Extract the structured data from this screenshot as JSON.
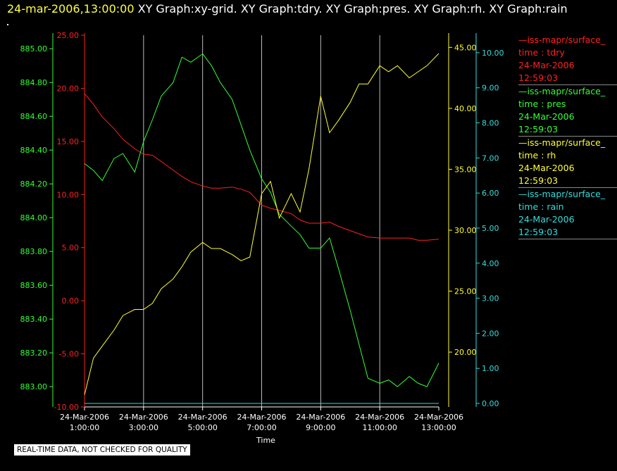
{
  "header": {
    "timestamp": "24-mar-2006,13:00:00",
    "graphs": "XY Graph:xy-grid.  XY Graph:tdry.  XY Graph:pres.  XY Graph:rh.  XY Graph:rain"
  },
  "legend": [
    {
      "name": "—iss-mapr/surface_",
      "field": "time : tdry",
      "date": "24-Mar-2006",
      "time": "12:59:03",
      "color": "#ff2020"
    },
    {
      "name": "—iss-mapr/surface_",
      "field": "time : pres",
      "date": "24-Mar-2006",
      "time": "12:59:03",
      "color": "#33ff33"
    },
    {
      "name": "—iss-mapr/surface_",
      "field": "time : rh",
      "date": "24-Mar-2006",
      "time": "12:59:03",
      "color": "#ffff33"
    },
    {
      "name": "—iss-mapr/surface_",
      "field": "time : rain",
      "date": "24-Mar-2006",
      "time": "12:59:03",
      "color": "#33dddd"
    }
  ],
  "disclaimer": "REAL-TIME DATA, NOT CHECKED FOR QUALITY",
  "chart_data": {
    "type": "line",
    "xlabel": "Time",
    "x_ticks": [
      [
        "24-Mar-2006",
        "1:00:00"
      ],
      [
        "24-Mar-2006",
        "3:00:00"
      ],
      [
        "24-Mar-2006",
        "5:00:00"
      ],
      [
        "24-Mar-2006",
        "7:00:00"
      ],
      [
        "24-Mar-2006",
        "9:00:00"
      ],
      [
        "24-Mar-2006",
        "11:00:00"
      ],
      [
        "24-Mar-2006",
        "13:00:00"
      ]
    ],
    "x_tick_hours": [
      1,
      3,
      5,
      7,
      9,
      11,
      13
    ],
    "xlim_hours": [
      1,
      13
    ],
    "grid": "vertical",
    "axes": [
      {
        "id": "tdry",
        "color": "#ff2020",
        "ylim": [
          -10,
          25
        ],
        "ticks": [
          "-10.00",
          "-5.00",
          "0.00",
          "5.00",
          "10.00",
          "15.00",
          "20.00",
          "25.00"
        ],
        "tick_values": [
          -10,
          -5,
          0,
          5,
          10,
          15,
          20,
          25
        ]
      },
      {
        "id": "pres",
        "color": "#33ff33",
        "ylim": [
          882.88,
          885.08
        ],
        "ticks": [
          "883.00",
          "883.20",
          "883.40",
          "883.60",
          "883.80",
          "884.00",
          "884.20",
          "884.40",
          "884.60",
          "884.80",
          "885.00"
        ],
        "tick_values": [
          883.0,
          883.2,
          883.4,
          883.6,
          883.8,
          884.0,
          884.2,
          884.4,
          884.6,
          884.8,
          885.0
        ]
      },
      {
        "id": "rh",
        "color": "#ffff33",
        "ylim": [
          15.5,
          46.0
        ],
        "ticks": [
          "20.00",
          "25.00",
          "30.00",
          "35.00",
          "40.00",
          "45.00"
        ],
        "tick_values": [
          20,
          25,
          30,
          35,
          40,
          45
        ]
      },
      {
        "id": "rain",
        "color": "#33dddd",
        "ylim": [
          -0.1,
          10.5
        ],
        "ticks": [
          "0.00",
          "1.00",
          "2.00",
          "3.00",
          "4.00",
          "5.00",
          "6.00",
          "7.00",
          "8.00",
          "9.00",
          "10.00"
        ],
        "tick_values": [
          0,
          1,
          2,
          3,
          4,
          5,
          6,
          7,
          8,
          9,
          10
        ]
      }
    ],
    "series": [
      {
        "axis": "tdry",
        "color": "#ff2020",
        "x": [
          1.0,
          1.3,
          1.6,
          2.0,
          2.3,
          2.7,
          3.0,
          3.3,
          3.6,
          4.0,
          4.3,
          4.6,
          5.0,
          5.3,
          5.6,
          6.0,
          6.3,
          6.6,
          7.0,
          7.3,
          7.6,
          8.0,
          8.3,
          8.6,
          9.0,
          9.3,
          9.6,
          10.0,
          10.3,
          10.6,
          11.0,
          11.3,
          11.6,
          12.0,
          12.3,
          12.6,
          13.0
        ],
        "y": [
          19.5,
          18.5,
          17.3,
          16.2,
          15.2,
          14.3,
          13.8,
          13.7,
          13.1,
          12.3,
          11.7,
          11.2,
          10.8,
          10.6,
          10.6,
          10.7,
          10.5,
          10.2,
          9.0,
          8.7,
          8.5,
          8.2,
          7.6,
          7.3,
          7.3,
          7.4,
          7.0,
          6.6,
          6.3,
          6.0,
          5.9,
          5.9,
          5.9,
          5.9,
          5.7,
          5.7,
          5.8
        ]
      },
      {
        "axis": "pres",
        "color": "#33ff33",
        "x": [
          1.0,
          1.3,
          1.6,
          2.0,
          2.3,
          2.7,
          3.0,
          3.3,
          3.6,
          4.0,
          4.3,
          4.6,
          5.0,
          5.3,
          5.6,
          6.0,
          6.3,
          6.6,
          7.0,
          7.3,
          7.6,
          8.0,
          8.3,
          8.6,
          9.0,
          9.3,
          9.6,
          10.0,
          10.3,
          10.6,
          11.0,
          11.3,
          11.6,
          12.0,
          12.3,
          12.6,
          13.0
        ],
        "y": [
          884.32,
          884.28,
          884.22,
          884.35,
          884.38,
          884.27,
          884.45,
          884.58,
          884.72,
          884.8,
          884.95,
          884.92,
          884.97,
          884.9,
          884.8,
          884.7,
          884.55,
          884.4,
          884.23,
          884.15,
          884.02,
          883.95,
          883.9,
          883.82,
          883.82,
          883.88,
          883.7,
          883.45,
          883.25,
          883.05,
          883.02,
          883.04,
          883.0,
          883.06,
          883.02,
          883.0,
          883.14
        ]
      },
      {
        "axis": "rh",
        "color": "#ffff33",
        "x": [
          1.0,
          1.3,
          1.6,
          2.0,
          2.3,
          2.7,
          3.0,
          3.3,
          3.6,
          4.0,
          4.3,
          4.6,
          5.0,
          5.3,
          5.6,
          6.0,
          6.3,
          6.6,
          7.0,
          7.3,
          7.6,
          8.0,
          8.3,
          8.6,
          9.0,
          9.3,
          9.6,
          10.0,
          10.3,
          10.6,
          11.0,
          11.3,
          11.6,
          12.0,
          12.3,
          12.6,
          13.0
        ],
        "y": [
          16.5,
          19.5,
          20.5,
          21.8,
          23.0,
          23.5,
          23.5,
          24.0,
          25.2,
          26.0,
          27.0,
          28.2,
          29.0,
          28.5,
          28.5,
          28.0,
          27.5,
          27.8,
          33.0,
          34.0,
          31.0,
          33.0,
          31.5,
          35.0,
          41.0,
          38.0,
          39.0,
          40.5,
          42.0,
          42.0,
          43.5,
          43.0,
          43.5,
          42.5,
          43.0,
          43.5,
          44.5
        ]
      },
      {
        "axis": "rain",
        "color": "#33dddd",
        "x": [
          1.0,
          13.0
        ],
        "y": [
          0.0,
          0.0
        ]
      }
    ]
  }
}
